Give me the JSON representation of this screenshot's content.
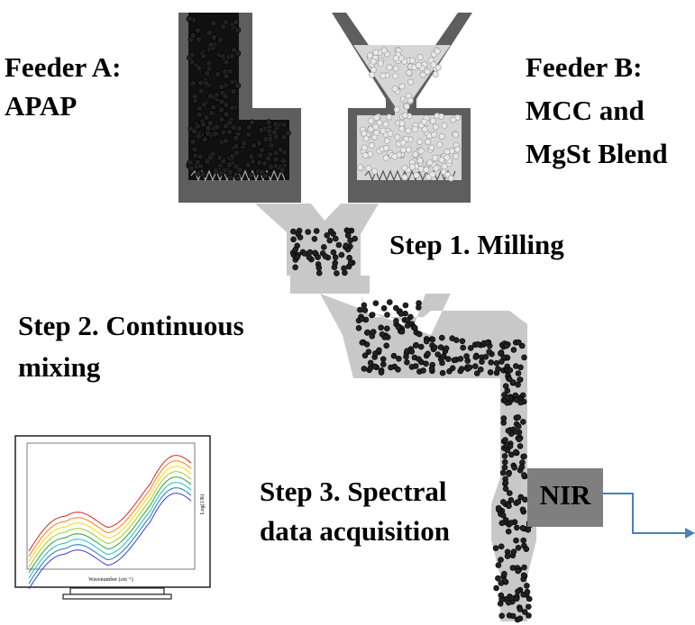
{
  "feeder_a": {
    "lines": [
      "Feeder A:",
      "APAP"
    ]
  },
  "feeder_b": {
    "lines": [
      "Feeder B:",
      "MCC and",
      "MgSt Blend"
    ]
  },
  "steps": [
    {
      "lines": [
        "Step 1. Milling"
      ]
    },
    {
      "lines": [
        "Step 2. Continuous",
        "mixing"
      ]
    },
    {
      "lines": [
        "Step 3. Spectral",
        "data acquisition"
      ]
    }
  ],
  "nir": {
    "label": "NIR"
  },
  "spectrum": {
    "x_label": "Wavenumber (cm⁻¹)",
    "y_label": "Log(1/R)"
  }
}
